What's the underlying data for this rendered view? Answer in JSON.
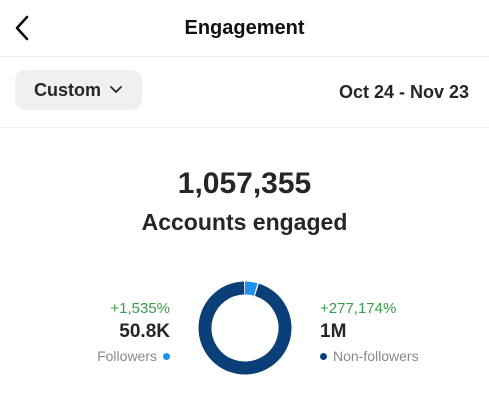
{
  "header": {
    "title": "Engagement",
    "back_icon": "chevron-left-icon"
  },
  "filter": {
    "range_label": "Custom",
    "range_icon": "chevron-down-icon",
    "date_range": "Oct 24 - Nov 23"
  },
  "summary": {
    "total": "1,057,355",
    "label": "Accounts engaged"
  },
  "breakdown": {
    "followers": {
      "change": "+1,535%",
      "value": "50.8K",
      "label": "Followers",
      "color": "#1e90ea",
      "share": 0.048
    },
    "non_followers": {
      "change": "+277,174%",
      "value": "1M",
      "label": "Non-followers",
      "color": "#0b3f78",
      "share": 0.952
    }
  },
  "colors": {
    "positive": "#3a9a4a",
    "muted": "#8a8a8a",
    "button_bg": "#eef0f2"
  }
}
